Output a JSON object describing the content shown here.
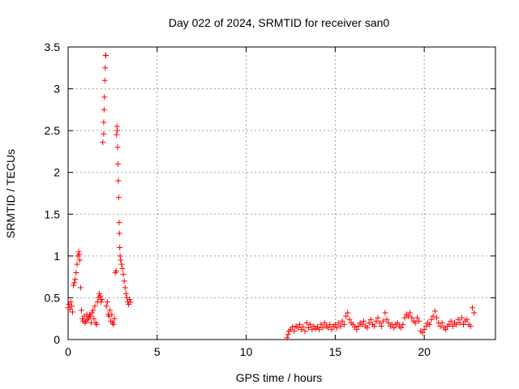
{
  "chart_data": {
    "type": "scatter",
    "title": "Day 022 of 2024, SRMTID for receiver san0",
    "xlabel": "GPS time / hours",
    "ylabel": "SRMTID / TECUs",
    "xlim": [
      0,
      24
    ],
    "ylim": [
      0,
      3.5
    ],
    "xticks": [
      0,
      5,
      10,
      15,
      20
    ],
    "yticks": [
      0,
      0.5,
      1,
      1.5,
      2,
      2.5,
      3,
      3.5
    ],
    "xtick_labels": [
      "0",
      "5",
      "10",
      "15",
      "20"
    ],
    "ytick_labels": [
      "0",
      "0.5",
      "1",
      "1.5",
      "2",
      "2.5",
      "3",
      "3.5"
    ],
    "grid": true,
    "marker": "+",
    "colors": {
      "series": "#ff0000",
      "grid": "#a0a0a0",
      "axes": "#000000"
    },
    "series": [
      {
        "points": [
          [
            0.0,
            0.38
          ],
          [
            0.05,
            0.42
          ],
          [
            0.1,
            0.36
          ],
          [
            0.15,
            0.45
          ],
          [
            0.2,
            0.4
          ],
          [
            0.25,
            0.33
          ],
          [
            0.3,
            0.65
          ],
          [
            0.35,
            0.68
          ],
          [
            0.4,
            0.72
          ],
          [
            0.45,
            0.8
          ],
          [
            0.5,
            0.9
          ],
          [
            0.55,
            1.0
          ],
          [
            0.6,
            1.05
          ],
          [
            0.62,
            1.02
          ],
          [
            0.65,
            0.95
          ],
          [
            0.7,
            0.62
          ],
          [
            0.75,
            0.35
          ],
          [
            0.8,
            0.25
          ],
          [
            0.85,
            0.22
          ],
          [
            0.9,
            0.28
          ],
          [
            0.95,
            0.2
          ],
          [
            1.0,
            0.22
          ],
          [
            1.05,
            0.3
          ],
          [
            1.1,
            0.24
          ],
          [
            1.15,
            0.26
          ],
          [
            1.2,
            0.3
          ],
          [
            1.25,
            0.28
          ],
          [
            1.3,
            0.2
          ],
          [
            1.35,
            0.32
          ],
          [
            1.4,
            0.35
          ],
          [
            1.45,
            0.25
          ],
          [
            1.5,
            0.4
          ],
          [
            1.55,
            0.2
          ],
          [
            1.6,
            0.18
          ],
          [
            1.65,
            0.45
          ],
          [
            1.7,
            0.5
          ],
          [
            1.75,
            0.55
          ],
          [
            1.8,
            0.52
          ],
          [
            1.85,
            0.45
          ],
          [
            1.9,
            0.48
          ],
          [
            1.95,
            2.36
          ],
          [
            2.0,
            2.46
          ],
          [
            2.0,
            2.6
          ],
          [
            2.02,
            2.75
          ],
          [
            2.04,
            2.9
          ],
          [
            2.06,
            3.1
          ],
          [
            2.08,
            3.25
          ],
          [
            2.1,
            3.4
          ],
          [
            2.12,
            3.4
          ],
          [
            2.15,
            0.4
          ],
          [
            2.2,
            0.45
          ],
          [
            2.25,
            0.3
          ],
          [
            2.3,
            0.28
          ],
          [
            2.35,
            0.35
          ],
          [
            2.4,
            0.22
          ],
          [
            2.45,
            0.3
          ],
          [
            2.5,
            0.2
          ],
          [
            2.55,
            0.18
          ],
          [
            2.6,
            0.25
          ],
          [
            2.65,
            0.8
          ],
          [
            2.7,
            0.82
          ],
          [
            2.72,
            2.45
          ],
          [
            2.74,
            2.55
          ],
          [
            2.76,
            2.5
          ],
          [
            2.78,
            2.3
          ],
          [
            2.8,
            2.1
          ],
          [
            2.82,
            1.9
          ],
          [
            2.84,
            1.7
          ],
          [
            2.86,
            1.4
          ],
          [
            2.88,
            1.27
          ],
          [
            2.9,
            1.1
          ],
          [
            2.92,
            1.0
          ],
          [
            2.95,
            0.95
          ],
          [
            3.0,
            0.9
          ],
          [
            3.05,
            0.85
          ],
          [
            3.1,
            0.78
          ],
          [
            3.15,
            0.7
          ],
          [
            3.2,
            0.62
          ],
          [
            3.25,
            0.55
          ],
          [
            3.3,
            0.5
          ],
          [
            3.35,
            0.45
          ],
          [
            3.4,
            0.42
          ],
          [
            3.45,
            0.48
          ],
          [
            3.5,
            0.45
          ],
          [
            12.3,
            0.02
          ],
          [
            12.35,
            0.06
          ],
          [
            12.4,
            0.1
          ],
          [
            12.5,
            0.12
          ],
          [
            12.6,
            0.15
          ],
          [
            12.7,
            0.1
          ],
          [
            12.8,
            0.16
          ],
          [
            12.9,
            0.14
          ],
          [
            13.0,
            0.18
          ],
          [
            13.1,
            0.12
          ],
          [
            13.2,
            0.15
          ],
          [
            13.3,
            0.1
          ],
          [
            13.4,
            0.2
          ],
          [
            13.5,
            0.14
          ],
          [
            13.6,
            0.18
          ],
          [
            13.7,
            0.12
          ],
          [
            13.8,
            0.16
          ],
          [
            13.9,
            0.13
          ],
          [
            14.0,
            0.15
          ],
          [
            14.1,
            0.12
          ],
          [
            14.2,
            0.18
          ],
          [
            14.3,
            0.14
          ],
          [
            14.4,
            0.2
          ],
          [
            14.5,
            0.16
          ],
          [
            14.6,
            0.14
          ],
          [
            14.7,
            0.18
          ],
          [
            14.8,
            0.12
          ],
          [
            14.9,
            0.16
          ],
          [
            15.0,
            0.18
          ],
          [
            15.1,
            0.14
          ],
          [
            15.2,
            0.2
          ],
          [
            15.3,
            0.16
          ],
          [
            15.4,
            0.22
          ],
          [
            15.5,
            0.18
          ],
          [
            15.6,
            0.28
          ],
          [
            15.7,
            0.32
          ],
          [
            15.8,
            0.24
          ],
          [
            15.9,
            0.2
          ],
          [
            16.0,
            0.18
          ],
          [
            16.1,
            0.15
          ],
          [
            16.2,
            0.12
          ],
          [
            16.3,
            0.16
          ],
          [
            16.4,
            0.2
          ],
          [
            16.5,
            0.18
          ],
          [
            16.6,
            0.22
          ],
          [
            16.7,
            0.16
          ],
          [
            16.8,
            0.14
          ],
          [
            16.9,
            0.2
          ],
          [
            17.0,
            0.24
          ],
          [
            17.1,
            0.18
          ],
          [
            17.2,
            0.16
          ],
          [
            17.3,
            0.22
          ],
          [
            17.4,
            0.26
          ],
          [
            17.5,
            0.2
          ],
          [
            17.6,
            0.16
          ],
          [
            17.7,
            0.22
          ],
          [
            17.8,
            0.32
          ],
          [
            17.9,
            0.24
          ],
          [
            18.0,
            0.2
          ],
          [
            18.1,
            0.16
          ],
          [
            18.2,
            0.18
          ],
          [
            18.3,
            0.14
          ],
          [
            18.4,
            0.18
          ],
          [
            18.5,
            0.2
          ],
          [
            18.6,
            0.16
          ],
          [
            18.7,
            0.14
          ],
          [
            18.8,
            0.18
          ],
          [
            18.9,
            0.26
          ],
          [
            19.0,
            0.3
          ],
          [
            19.1,
            0.28
          ],
          [
            19.2,
            0.32
          ],
          [
            19.3,
            0.26
          ],
          [
            19.4,
            0.22
          ],
          [
            19.5,
            0.2
          ],
          [
            19.6,
            0.26
          ],
          [
            19.7,
            0.22
          ],
          [
            19.8,
            0.1
          ],
          [
            19.9,
            0.08
          ],
          [
            20.0,
            0.12
          ],
          [
            20.1,
            0.16
          ],
          [
            20.2,
            0.2
          ],
          [
            20.3,
            0.18
          ],
          [
            20.4,
            0.24
          ],
          [
            20.5,
            0.28
          ],
          [
            20.6,
            0.34
          ],
          [
            20.7,
            0.26
          ],
          [
            20.8,
            0.2
          ],
          [
            20.9,
            0.16
          ],
          [
            21.0,
            0.2
          ],
          [
            21.1,
            0.14
          ],
          [
            21.2,
            0.12
          ],
          [
            21.3,
            0.16
          ],
          [
            21.4,
            0.18
          ],
          [
            21.5,
            0.22
          ],
          [
            21.6,
            0.16
          ],
          [
            21.7,
            0.2
          ],
          [
            21.8,
            0.18
          ],
          [
            21.9,
            0.24
          ],
          [
            22.0,
            0.2
          ],
          [
            22.1,
            0.26
          ],
          [
            22.2,
            0.18
          ],
          [
            22.3,
            0.22
          ],
          [
            22.4,
            0.24
          ],
          [
            22.5,
            0.18
          ],
          [
            22.6,
            0.16
          ],
          [
            22.7,
            0.38
          ],
          [
            22.8,
            0.32
          ]
        ]
      }
    ]
  }
}
